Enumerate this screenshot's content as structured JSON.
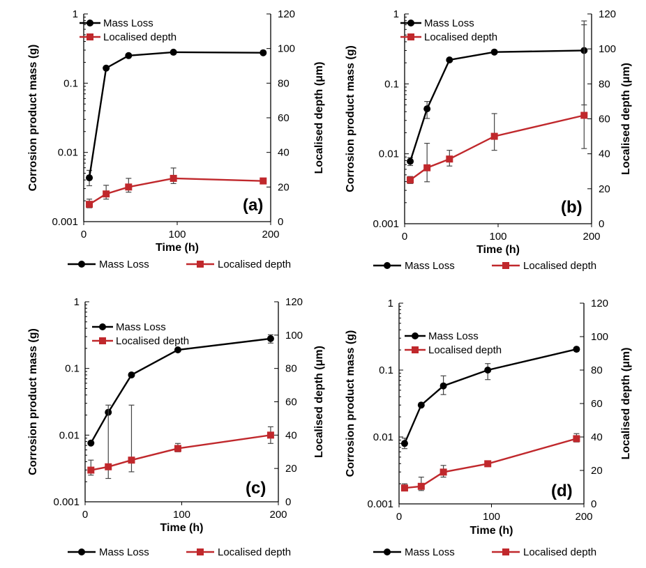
{
  "chart_data": [
    {
      "type": "line",
      "panel_label": "(a)",
      "xlabel": "Time (h)",
      "ylabel_left": "Corrosion product mass (g)",
      "ylabel_right": "Localised depth (μm)",
      "xlim": [
        0,
        200
      ],
      "xticks": [
        0,
        100,
        200
      ],
      "ylim_left": [
        0.001,
        1
      ],
      "yscale_left": "log",
      "yticks_left": [
        "1",
        "0.1",
        "0.01",
        "0.001"
      ],
      "ylim_right": [
        0,
        120
      ],
      "yticks_right": [
        0,
        20,
        40,
        60,
        80,
        100,
        120
      ],
      "legend_position": "top-left",
      "series": [
        {
          "name": "Mass Loss",
          "axis": "left",
          "color": "#000000",
          "marker": "circle",
          "x": [
            6,
            24,
            48,
            96,
            192
          ],
          "y": [
            0.0043,
            0.165,
            0.25,
            0.28,
            0.275
          ],
          "err_low": [
            0.0033,
            null,
            null,
            null,
            null
          ],
          "err_high": [
            0.0055,
            null,
            null,
            null,
            null
          ]
        },
        {
          "name": "Localised depth",
          "axis": "right",
          "color": "#c0282c",
          "marker": "square",
          "x": [
            6,
            24,
            48,
            96,
            192
          ],
          "y": [
            10,
            16,
            20,
            25,
            23.5
          ],
          "err_low": [
            8,
            13,
            17,
            22,
            null
          ],
          "err_high": [
            13,
            21,
            25,
            31,
            null
          ]
        }
      ],
      "bottom_legend": [
        "Mass Loss",
        "Localised depth"
      ]
    },
    {
      "type": "line",
      "panel_label": "(b)",
      "xlabel": "Time (h)",
      "ylabel_left": "Corrosion product mass (g)",
      "ylabel_right": "Localised depth (μm)",
      "xlim": [
        0,
        200
      ],
      "xticks": [
        0,
        100,
        200
      ],
      "ylim_left": [
        0.001,
        1
      ],
      "yscale_left": "log",
      "yticks_left": [
        "1",
        "0.1",
        "0.01",
        "0.001"
      ],
      "ylim_right": [
        0,
        120
      ],
      "yticks_right": [
        0,
        20,
        40,
        60,
        80,
        100,
        120
      ],
      "legend_position": "top-left",
      "series": [
        {
          "name": "Mass Loss",
          "axis": "left",
          "color": "#000000",
          "marker": "circle",
          "x": [
            6,
            24,
            48,
            96,
            192
          ],
          "y": [
            0.0078,
            0.044,
            0.22,
            0.285,
            0.3
          ],
          "err_low": [
            0.0068,
            0.032,
            null,
            null,
            0.05
          ],
          "err_high": [
            0.0088,
            0.056,
            null,
            null,
            0.7
          ]
        },
        {
          "name": "Localised depth",
          "axis": "right",
          "color": "#c0282c",
          "marker": "square",
          "x": [
            6,
            24,
            48,
            96,
            192
          ],
          "y": [
            25,
            32,
            37,
            50,
            62
          ],
          "err_low": [
            23,
            24,
            33,
            42,
            43
          ],
          "err_high": [
            27,
            46,
            42,
            63,
            116
          ]
        }
      ],
      "bottom_legend": [
        "Mass Loss",
        "Localised depth"
      ]
    },
    {
      "type": "line",
      "panel_label": "(c)",
      "xlabel": "Time (h)",
      "ylabel_left": "Corrosion product mass (g)",
      "ylabel_right": "Localised depth (μm)",
      "xlim": [
        0,
        200
      ],
      "xticks": [
        0,
        100,
        200
      ],
      "ylim_left": [
        0.001,
        1
      ],
      "yscale_left": "log",
      "yticks_left": [
        "1",
        "0.1",
        "0.01",
        "0.001"
      ],
      "ylim_right": [
        0,
        120
      ],
      "yticks_right": [
        0,
        20,
        40,
        60,
        80,
        100,
        120
      ],
      "legend_position": "top-left",
      "series": [
        {
          "name": "Mass Loss",
          "axis": "left",
          "color": "#000000",
          "marker": "circle",
          "x": [
            6,
            24,
            48,
            96,
            192
          ],
          "y": [
            0.0076,
            0.022,
            0.08,
            0.19,
            0.28
          ],
          "err_low": [
            null,
            null,
            null,
            null,
            0.24
          ],
          "err_high": [
            null,
            null,
            null,
            null,
            0.32
          ]
        },
        {
          "name": "Localised depth",
          "axis": "right",
          "color": "#c0282c",
          "marker": "square",
          "x": [
            6,
            24,
            48,
            96,
            192
          ],
          "y": [
            19,
            21,
            25,
            32,
            40
          ],
          "err_low": [
            16,
            14,
            18,
            30,
            35
          ],
          "err_high": [
            25,
            58,
            58,
            35,
            45
          ]
        }
      ],
      "bottom_legend": [
        "Mass Loss",
        "Localised depth"
      ]
    },
    {
      "type": "line",
      "panel_label": "(d)",
      "xlabel": "Time (h)",
      "ylabel_left": "Corrosion product mass (g)",
      "ylabel_right": "Localised depth (μm)",
      "xlim": [
        0,
        200
      ],
      "xticks": [
        0,
        100,
        200
      ],
      "ylim_left": [
        0.001,
        1
      ],
      "yscale_left": "log",
      "yticks_left": [
        "1",
        "0.1",
        "0.01",
        "0.001"
      ],
      "ylim_right": [
        0,
        120
      ],
      "yticks_right": [
        0,
        20,
        40,
        60,
        80,
        100,
        120
      ],
      "legend_position": "top-left",
      "series": [
        {
          "name": "Mass Loss",
          "axis": "left",
          "color": "#000000",
          "marker": "circle",
          "x": [
            6,
            24,
            48,
            96,
            192
          ],
          "y": [
            0.008,
            0.03,
            0.058,
            0.1,
            0.205
          ],
          "err_low": [
            0.0067,
            null,
            0.043,
            0.072,
            null
          ],
          "err_high": [
            0.0096,
            null,
            0.082,
            0.125,
            null
          ]
        },
        {
          "name": "Localised depth",
          "axis": "right",
          "color": "#c0282c",
          "marker": "square",
          "x": [
            6,
            24,
            48,
            96,
            192
          ],
          "y": [
            9.5,
            10.5,
            19,
            24,
            39
          ],
          "err_low": [
            8,
            8,
            16,
            null,
            37
          ],
          "err_high": [
            12,
            16,
            23,
            null,
            42
          ]
        }
      ],
      "bottom_legend": [
        "Mass Loss",
        "Localised depth"
      ]
    }
  ]
}
